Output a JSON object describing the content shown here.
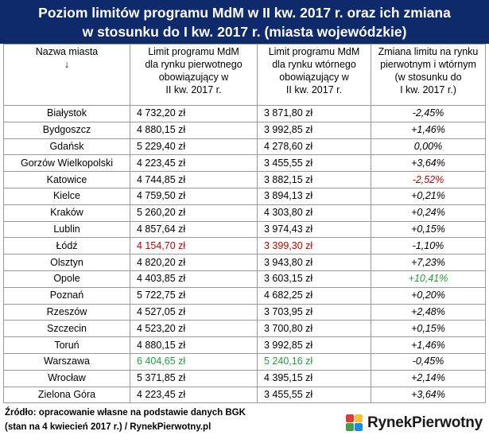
{
  "title": {
    "line1": "Poziom limitów programu MdM w II kw. 2017 r. oraz ich zmiana",
    "line2": "w stosunku do I kw. 2017 r. (miasta wojewódzkie)"
  },
  "headers": {
    "city": [
      "Nazwa miasta",
      "↓"
    ],
    "primary": [
      "Limit programu MdM",
      "dla rynku pierwotnego",
      "obowiązujący w",
      "II kw. 2017 r."
    ],
    "secondary": [
      "Limit programu MdM",
      "dla rynku wtórnego",
      "obowiązujący w",
      "II kw. 2017 r."
    ],
    "change": [
      "Zmiana limitu na rynku",
      "pierwotnym i wtórnym",
      "(w stosunku do",
      "I kw. 2017 r.)"
    ]
  },
  "rows": [
    {
      "city": "Białystok",
      "primary": "4 732,20 zł",
      "secondary": "3 871,80 zł",
      "change": "-2,45%"
    },
    {
      "city": "Bydgoszcz",
      "primary": "4 880,15 zł",
      "secondary": "3 992,85 zł",
      "change": "+1,46%"
    },
    {
      "city": "Gdańsk",
      "primary": "5 229,40 zł",
      "secondary": "4 278,60 zł",
      "change": "0,00%"
    },
    {
      "city": "Gorzów Wielkopolski",
      "primary": "4 223,45 zł",
      "secondary": "3 455,55 zł",
      "change": "+3,64%"
    },
    {
      "city": "Katowice",
      "primary": "4 744,85 zł",
      "secondary": "3 882,15 zł",
      "change": "-2,52%",
      "changeColor": "red"
    },
    {
      "city": "Kielce",
      "primary": "4 759,50 zł",
      "secondary": "3 894,13 zł",
      "change": "+0,21%"
    },
    {
      "city": "Kraków",
      "primary": "5 260,20 zł",
      "secondary": "4 303,80 zł",
      "change": "+0,24%"
    },
    {
      "city": "Lublin",
      "primary": "4 857,64 zł",
      "secondary": "3 974,43 zł",
      "change": "+0,15%"
    },
    {
      "city": "Łódź",
      "primary": "4 154,70 zł",
      "secondary": "3 399,30 zł",
      "change": "-1,10%",
      "valueColor": "red"
    },
    {
      "city": "Olsztyn",
      "primary": "4 820,20 zł",
      "secondary": "3 943,80 zł",
      "change": "+7,23%"
    },
    {
      "city": "Opole",
      "primary": "4 403,85 zł",
      "secondary": "3 603,15 zł",
      "change": "+10,41%",
      "changeColor": "green"
    },
    {
      "city": "Poznań",
      "primary": "5 722,75 zł",
      "secondary": "4 682,25 zł",
      "change": "+0,20%"
    },
    {
      "city": "Rzeszów",
      "primary": "4 527,05 zł",
      "secondary": "3 703,95 zł",
      "change": "+2,48%"
    },
    {
      "city": "Szczecin",
      "primary": "4 523,20 zł",
      "secondary": "3 700,80 zł",
      "change": "+0,15%"
    },
    {
      "city": "Toruń",
      "primary": "4 880,15 zł",
      "secondary": "3 992,85 zł",
      "change": "+1,46%"
    },
    {
      "city": "Warszawa",
      "primary": "6 404,65 zł",
      "secondary": "5 240,16 zł",
      "change": "-0,45%",
      "valueColor": "green"
    },
    {
      "city": "Wrocław",
      "primary": "5 371,85 zł",
      "secondary": "4 395,15 zł",
      "change": "+2,14%"
    },
    {
      "city": "Zielona Góra",
      "primary": "4 223,45 zł",
      "secondary": "3 455,55 zł",
      "change": "+3,64%"
    }
  ],
  "footer": {
    "source_line1": "Źródło: opracowanie własne na podstawie danych BGK",
    "source_line2": "(stan na 4 kwiecień 2017 r.) / RynekPierwotny.pl",
    "logo_text": "RynekPierwotny",
    "logo_colors": [
      "#e53935",
      "#fbc02d",
      "#43a047",
      "#1e88e5"
    ]
  }
}
